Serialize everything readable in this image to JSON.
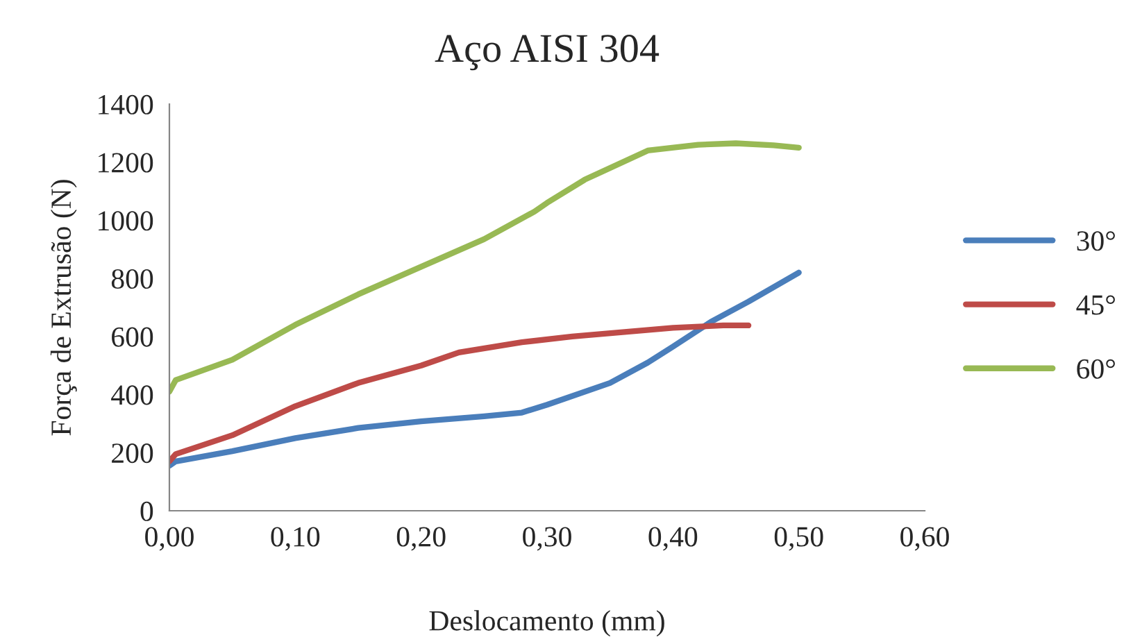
{
  "chart_data": {
    "type": "line",
    "title": "Aço AISI 304",
    "xlabel": "Deslocamento (mm)",
    "ylabel": "Força de Extrusão (N)",
    "xlim": [
      0,
      0.6
    ],
    "xticks": [
      {
        "value": 0,
        "label": "0,00"
      },
      {
        "value": 0.1,
        "label": "0,10"
      },
      {
        "value": 0.2,
        "label": "0,20"
      },
      {
        "value": 0.3,
        "label": "0,30"
      },
      {
        "value": 0.4,
        "label": "0,40"
      },
      {
        "value": 0.5,
        "label": "0,50"
      },
      {
        "value": 0.6,
        "label": "0,60"
      }
    ],
    "ylim": [
      0,
      1400
    ],
    "yticks": [
      0,
      200,
      400,
      600,
      800,
      1000,
      1200,
      1400
    ],
    "grid": false,
    "legend": "right",
    "marker": "none",
    "line_style": "solid",
    "series": [
      {
        "name": "30°",
        "color": "#4a7ebb",
        "x": [
          0.0,
          0.005,
          0.05,
          0.1,
          0.15,
          0.2,
          0.25,
          0.28,
          0.3,
          0.35,
          0.38,
          0.4,
          0.43,
          0.46,
          0.5
        ],
        "values": [
          155,
          170,
          205,
          250,
          285,
          308,
          325,
          338,
          365,
          440,
          510,
          565,
          650,
          720,
          820
        ]
      },
      {
        "name": "45°",
        "color": "#be4b48",
        "x": [
          0.0,
          0.005,
          0.05,
          0.1,
          0.15,
          0.2,
          0.23,
          0.28,
          0.32,
          0.36,
          0.4,
          0.44,
          0.46
        ],
        "values": [
          170,
          195,
          260,
          360,
          440,
          500,
          545,
          580,
          600,
          615,
          630,
          638,
          638
        ]
      },
      {
        "name": "60°",
        "color": "#98b954",
        "x": [
          0.0,
          0.005,
          0.05,
          0.1,
          0.15,
          0.2,
          0.25,
          0.29,
          0.3,
          0.33,
          0.38,
          0.42,
          0.45,
          0.48,
          0.5
        ],
        "values": [
          410,
          450,
          520,
          640,
          745,
          840,
          935,
          1030,
          1060,
          1140,
          1240,
          1260,
          1265,
          1258,
          1250
        ]
      }
    ]
  }
}
